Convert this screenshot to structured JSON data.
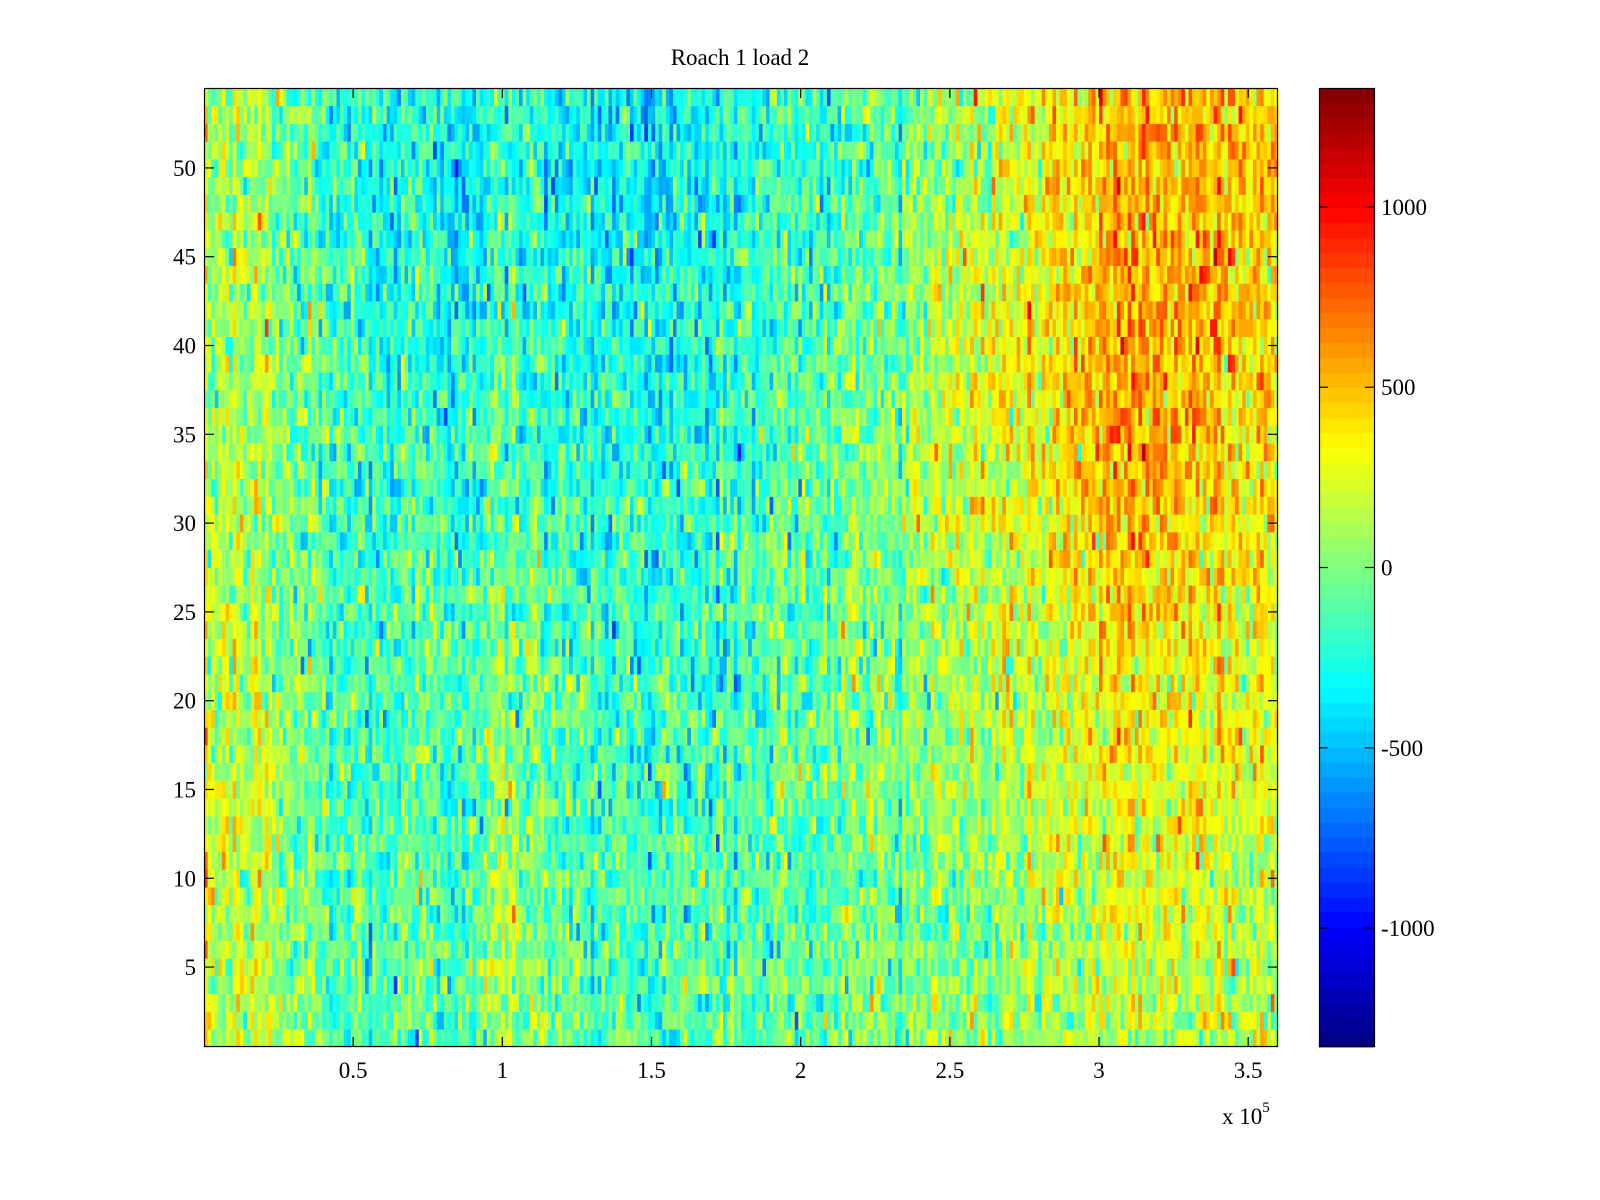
{
  "chart_data": {
    "type": "heatmap",
    "title": "Roach 1 load 2",
    "xlabel": "",
    "ylabel": "",
    "x_exponent_label": "x 10",
    "x_exponent": "5",
    "xlim": [
      0,
      360000
    ],
    "ylim": [
      0.5,
      54.5
    ],
    "rows": 54,
    "columns": 300,
    "x_ticks": [
      50000,
      100000,
      150000,
      200000,
      250000,
      300000,
      350000
    ],
    "x_tick_labels": [
      "0.5",
      "1",
      "1.5",
      "2",
      "2.5",
      "3",
      "3.5"
    ],
    "y_ticks": [
      5,
      10,
      15,
      20,
      25,
      30,
      35,
      40,
      45,
      50
    ],
    "y_tick_labels": [
      "5",
      "10",
      "15",
      "20",
      "25",
      "30",
      "35",
      "40",
      "45",
      "50"
    ],
    "colormap": "jet",
    "colormap_steps": 64,
    "clim": [
      -1330,
      1330
    ],
    "colorbar": {
      "ticks": [
        -1000,
        -500,
        0,
        500,
        1000
      ],
      "tick_labels": [
        "-1000",
        "-500",
        "0",
        "500",
        "1000"
      ],
      "placement": "right"
    },
    "mean_field": {
      "description_units": "approximate mean value per region (data units)",
      "column_band_edges": [
        0,
        30000,
        60000,
        90000,
        120000,
        150000,
        180000,
        210000,
        240000,
        270000,
        300000,
        330000,
        360000
      ],
      "row_band_ranges": [
        [
          1,
          9
        ],
        [
          10,
          18
        ],
        [
          19,
          27
        ],
        [
          28,
          36
        ],
        [
          37,
          45
        ],
        [
          46,
          54
        ]
      ],
      "values": [
        [
          200,
          -100,
          -100,
          50,
          -100,
          -150,
          -100,
          0,
          0,
          100,
          200,
          150
        ],
        [
          200,
          -150,
          -150,
          0,
          -100,
          -200,
          -50,
          0,
          50,
          150,
          300,
          250
        ],
        [
          150,
          -150,
          -100,
          -50,
          -150,
          -200,
          -100,
          0,
          100,
          250,
          350,
          300
        ],
        [
          150,
          -150,
          -200,
          -150,
          -200,
          -250,
          -100,
          0,
          200,
          350,
          600,
          400
        ],
        [
          100,
          -200,
          -250,
          -200,
          -250,
          -300,
          -150,
          -50,
          200,
          400,
          600,
          450
        ],
        [
          100,
          -250,
          -300,
          -250,
          -300,
          -350,
          -200,
          -100,
          100,
          350,
          550,
          500
        ]
      ],
      "noise_std": 190
    }
  }
}
